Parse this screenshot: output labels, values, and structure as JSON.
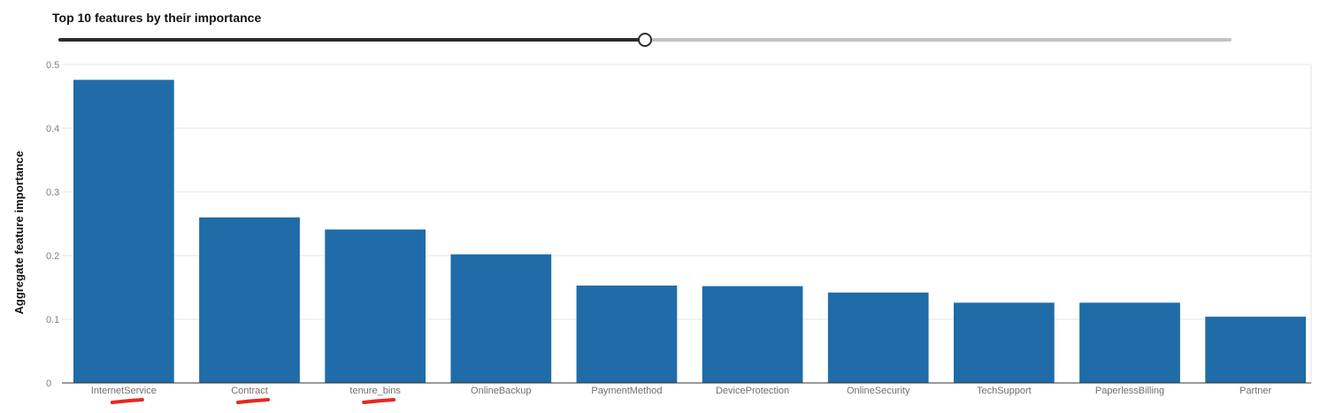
{
  "header": {
    "title": "Top 10 features by their importance"
  },
  "slider": {
    "value_fraction": 0.5
  },
  "chart_data": {
    "type": "bar",
    "title": "",
    "xlabel": "",
    "ylabel": "Aggregate feature importance",
    "ylim": [
      0,
      0.5
    ],
    "yticks": [
      "0",
      "0.1",
      "0.2",
      "0.3",
      "0.4",
      "0.5"
    ],
    "grid": true,
    "categories": [
      "InternetService",
      "Contract",
      "tenure_bins",
      "OnlineBackup",
      "PaymentMethod",
      "DeviceProtection",
      "OnlineSecurity",
      "TechSupport",
      "PaperlessBilling",
      "Partner"
    ],
    "values": [
      0.476,
      0.26,
      0.241,
      0.202,
      0.153,
      0.152,
      0.142,
      0.126,
      0.126,
      0.104
    ],
    "bar_color": "#1f6ca8",
    "annotations": [
      {
        "type": "red-underline",
        "category": "InternetService",
        "color": "#e8281f"
      },
      {
        "type": "red-underline",
        "category": "Contract",
        "color": "#e8281f"
      },
      {
        "type": "red-underline",
        "category": "tenure_bins",
        "color": "#e8281f"
      }
    ]
  }
}
